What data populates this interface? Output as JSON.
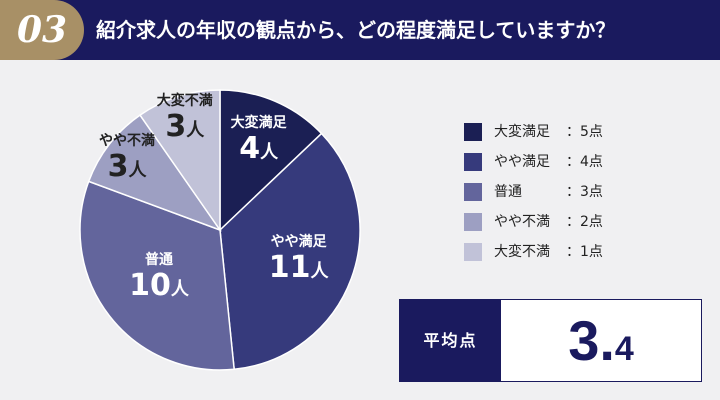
{
  "header": {
    "question_number": "03",
    "question": "紹介求人の年収の観点から、どの程度満足していますか？"
  },
  "chart_data": {
    "type": "pie",
    "unit": "人",
    "slices": [
      {
        "label": "大変満足",
        "value": 4,
        "color": "#1b1f54"
      },
      {
        "label": "やや満足",
        "value": 11,
        "color": "#363a7c"
      },
      {
        "label": "普通",
        "value": 10,
        "color": "#63659c"
      },
      {
        "label": "やや不満",
        "value": 3,
        "color": "#9d9fc2"
      },
      {
        "label": "大変不満",
        "value": 3,
        "color": "#c1c2d8"
      }
    ],
    "legend": [
      {
        "label": "大変満足",
        "score": "：5点",
        "color": "#1b1f54"
      },
      {
        "label": "やや満足",
        "score": "：4点",
        "color": "#363a7c"
      },
      {
        "label": "普通",
        "score": "：3点",
        "color": "#63659c"
      },
      {
        "label": "やや不満",
        "score": "：2点",
        "color": "#9d9fc2"
      },
      {
        "label": "大変不満",
        "score": "：1点",
        "color": "#c1c2d8"
      }
    ]
  },
  "average": {
    "label": "平均点",
    "value_int": "3.",
    "value_dec": "4"
  }
}
